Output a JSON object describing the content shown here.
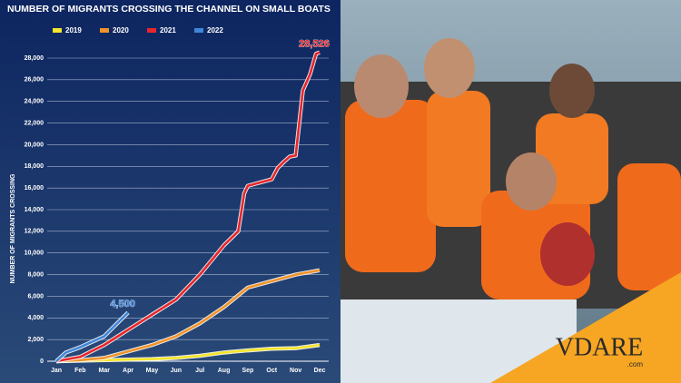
{
  "chart_data": {
    "type": "line",
    "title": "NUMBER OF MIGRANTS CROSSING THE CHANNEL ON SMALL BOATS",
    "ylabel": "NUMBER OF MIGRANTS CROSSING",
    "xlim": [
      0,
      11
    ],
    "xticks": [
      {
        "value": 0,
        "label": "Jan"
      },
      {
        "value": 1,
        "label": "Feb"
      },
      {
        "value": 2,
        "label": "Mar"
      },
      {
        "value": 3,
        "label": "Apr"
      },
      {
        "value": 4,
        "label": "May"
      },
      {
        "value": 5,
        "label": "Jun"
      },
      {
        "value": 6,
        "label": "Jul"
      },
      {
        "value": 7,
        "label": "Aug"
      },
      {
        "value": 8,
        "label": "Sep"
      },
      {
        "value": 9,
        "label": "Oct"
      },
      {
        "value": 10,
        "label": "Nov"
      },
      {
        "value": 11,
        "label": "Dec"
      }
    ],
    "ylim": [
      0,
      28000
    ],
    "yticks": [
      0,
      {
        "value": 2000,
        "label": "2,000"
      },
      {
        "value": 4000,
        "label": "4,000"
      },
      {
        "value": 6000,
        "label": "6,000"
      },
      {
        "value": 8000,
        "label": "8,000"
      },
      {
        "value": 10000,
        "label": "10,000"
      },
      {
        "value": 12000,
        "label": "12,000"
      },
      {
        "value": 14000,
        "label": "14,000"
      },
      {
        "value": 16000,
        "label": "16,000"
      },
      {
        "value": 18000,
        "label": "18,000"
      },
      {
        "value": 20000,
        "label": "20,000"
      },
      {
        "value": 22000,
        "label": "22,000"
      },
      {
        "value": 24000,
        "label": "24,000"
      },
      {
        "value": 26000,
        "label": "26,000"
      },
      {
        "value": 28000,
        "label": "28,000"
      }
    ],
    "grid": true,
    "series": [
      {
        "name": "2019",
        "color": "#f5e52a",
        "x": [
          0,
          1,
          2,
          3,
          4,
          5,
          6,
          7,
          8,
          9,
          10,
          11
        ],
        "values": [
          0,
          50,
          100,
          150,
          200,
          300,
          500,
          800,
          1000,
          1150,
          1200,
          1500
        ]
      },
      {
        "name": "2020",
        "color": "#f0942a",
        "x": [
          0,
          1,
          2,
          3,
          4,
          5,
          6,
          7,
          8,
          9,
          10,
          11
        ],
        "values": [
          0,
          100,
          300,
          900,
          1500,
          2300,
          3500,
          5000,
          6800,
          7400,
          8000,
          8400
        ]
      },
      {
        "name": "2021",
        "color": "#e8262b",
        "x": [
          0,
          1,
          2,
          3,
          4,
          5,
          6,
          7,
          7.6,
          7.85,
          8,
          9,
          9.25,
          9.5,
          9.75,
          10,
          10.3,
          10.6,
          10.85,
          11
        ],
        "values": [
          0,
          400,
          1500,
          2900,
          4300,
          5700,
          8000,
          10700,
          12000,
          15500,
          16200,
          16800,
          17850,
          18400,
          18900,
          19000,
          25000,
          26500,
          28400,
          28526
        ],
        "value_labels": [
          null,
          null,
          null,
          null,
          null,
          null,
          null,
          null,
          null,
          null,
          null,
          null,
          null,
          null,
          null,
          null,
          null,
          null,
          null,
          "28,526"
        ]
      },
      {
        "name": "2022",
        "color": "#3f86d8",
        "x": [
          0,
          0.4,
          1,
          2,
          3
        ],
        "values": [
          0,
          800,
          1300,
          2300,
          4500
        ],
        "value_labels": [
          null,
          null,
          null,
          null,
          "4,500"
        ]
      }
    ]
  },
  "logo": {
    "text": "VDARE",
    "domain": ".com"
  }
}
